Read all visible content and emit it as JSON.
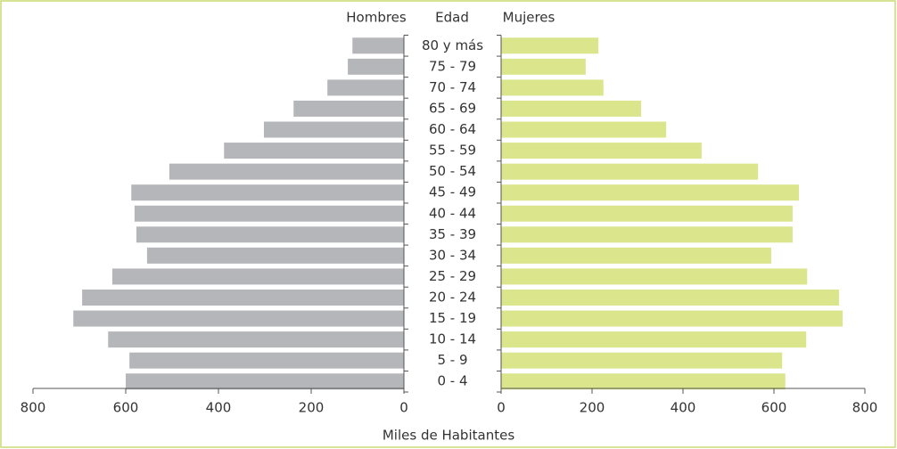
{
  "chart_data": {
    "type": "pyramid",
    "category_label": "Edad",
    "categories": [
      "80 y más",
      "75 - 79",
      "70 - 74",
      "65 - 69",
      "60 - 64",
      "55 - 59",
      "50 - 54",
      "45 - 49",
      "40 - 44",
      "35 - 39",
      "30 - 34",
      "25 - 29",
      "20 - 24",
      "15 - 19",
      "10 - 14",
      "5 - 9",
      "0 - 4"
    ],
    "series": [
      {
        "name": "Hombres",
        "color": "#b5b6b9",
        "values": [
          111,
          121,
          165,
          238,
          302,
          388,
          506,
          588,
          581,
          577,
          554,
          629,
          694,
          713,
          638,
          592,
          600
        ]
      },
      {
        "name": "Mujeres",
        "color": "#dbe58b",
        "values": [
          214,
          186,
          225,
          308,
          363,
          441,
          565,
          655,
          641,
          641,
          594,
          673,
          743,
          751,
          671,
          618,
          625
        ]
      }
    ],
    "xlabel": "Miles de Habitantes",
    "xlim": [
      0,
      800
    ],
    "xticks": [
      0,
      200,
      400,
      600,
      800
    ]
  }
}
